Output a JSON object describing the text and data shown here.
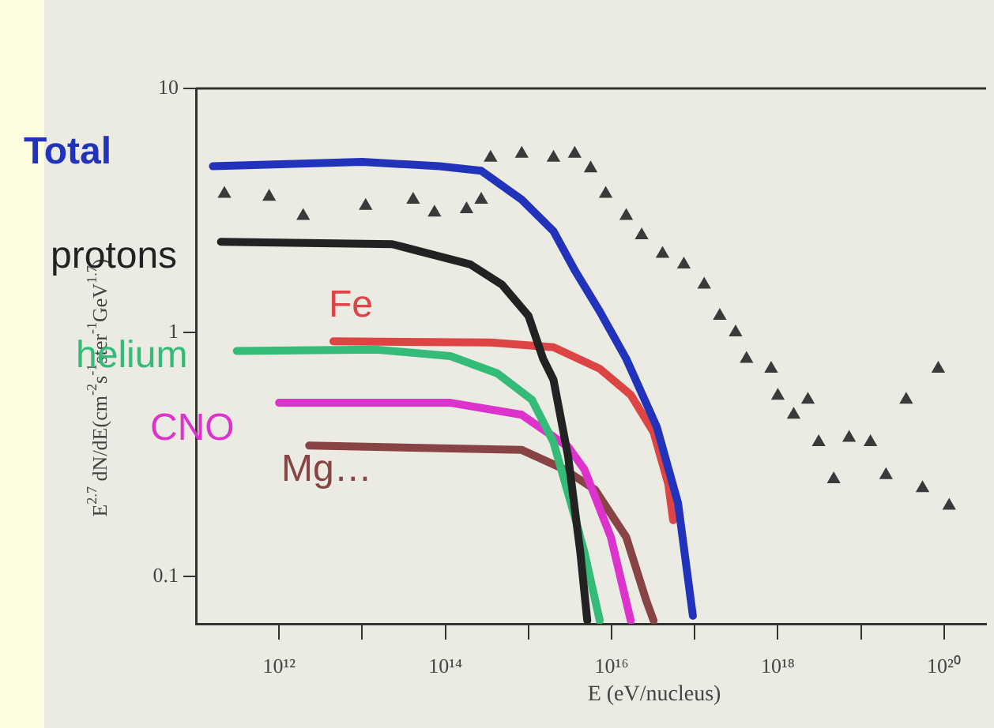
{
  "chart_data": {
    "type": "line",
    "xlabel": "E (eV/nucleus)",
    "ylabel": "E$^{2.7}$ dN/dE(cm$^{-2}$s$^{-1}$ster$^{-1}$GeV$^{1.7}$)",
    "log": "xy",
    "grid": false,
    "legend": false,
    "line_style": "solid",
    "marker": "none",
    "xlim": [
      100000000000.0,
      3.2e+20
    ],
    "ylim": [
      0.064,
      10
    ],
    "xticks": [
      {
        "value": 1000000000000.0,
        "label": "10¹²"
      },
      {
        "value": 10000000000000.0,
        "label": null
      },
      {
        "value": 100000000000000.0,
        "label": "10¹⁴"
      },
      {
        "value": 1000000000000000.0,
        "label": null
      },
      {
        "value": 1e+16,
        "label": "10¹⁶"
      },
      {
        "value": 1e+17,
        "label": null
      },
      {
        "value": 1e+18,
        "label": "10¹⁸"
      },
      {
        "value": 1e+19,
        "label": null
      },
      {
        "value": 1e+20,
        "label": "10²⁰"
      }
    ],
    "yticks": [
      0.1,
      1,
      10
    ],
    "series": [
      {
        "type": "scatter",
        "marker": "triangle",
        "color": "#3a3a3a",
        "x": [
          220000000000.0,
          760000000000.0,
          1950000000000.0,
          11000000000000.0,
          41000000000000.0,
          74000000000000.0,
          180000000000000.0,
          270000000000000.0,
          350000000000000.0,
          830000000000000.0,
          2000000000000000.0,
          3600000000000000.0,
          5600000000000000.0,
          8500000000000000.0,
          1.5e+16,
          2.3e+16,
          4.1e+16,
          7.4e+16,
          1.3e+17,
          2e+17,
          3.1e+17,
          4.2e+17,
          8.3e+17,
          1e+18,
          1.55e+18,
          2.3e+18,
          3.1e+18,
          4.7e+18,
          7.2e+18,
          1.3e+19,
          2e+19,
          3.5e+19,
          5.5e+19,
          8.5e+19,
          1.15e+20
        ],
        "values": [
          3.7,
          3.6,
          3.0,
          3.3,
          3.5,
          3.1,
          3.2,
          3.5,
          5.2,
          5.4,
          5.2,
          5.4,
          4.7,
          3.7,
          3.0,
          2.5,
          2.1,
          1.9,
          1.57,
          1.17,
          1.0,
          0.78,
          0.71,
          0.55,
          0.46,
          0.53,
          0.355,
          0.25,
          0.37,
          0.355,
          0.26,
          0.53,
          0.23,
          0.71,
          0.195
        ]
      },
      {
        "name": "Total",
        "color": "#2233bb",
        "x": [
          160000000000.0,
          10000000000000.0,
          85000000000000.0,
          270000000000000.0,
          830000000000000.0,
          2000000000000000.0,
          3600000000000000.0,
          7200000000000000.0,
          1.5e+16,
          3.5e+16,
          6.3e+16,
          9.5e+16
        ],
        "values": [
          4.8,
          5.0,
          4.8,
          4.6,
          3.5,
          2.6,
          1.8,
          1.22,
          0.78,
          0.41,
          0.2,
          0.069
        ]
      },
      {
        "name": "protons",
        "color": "#222222",
        "x": [
          200000000000.0,
          23000000000000.0,
          200000000000000.0,
          480000000000000.0,
          1000000000000000.0,
          1500000000000000.0,
          2000000000000000.0,
          3000000000000000.0,
          4200000000000000.0,
          5100000000000000.0
        ],
        "values": [
          2.35,
          2.3,
          1.9,
          1.57,
          1.17,
          0.78,
          0.64,
          0.31,
          0.126,
          0.066
        ]
      },
      {
        "name": "Fe",
        "color": "#dd4444",
        "x": [
          4500000000000.0,
          350000000000000.0,
          2000000000000000.0,
          7200000000000000.0,
          1.7e+16,
          3.2e+16,
          4.8e+16,
          5.5e+16
        ],
        "values": [
          0.92,
          0.91,
          0.87,
          0.71,
          0.555,
          0.39,
          0.24,
          0.17
        ]
      },
      {
        "name": "helium",
        "color": "#33bb77",
        "x": [
          310000000000.0,
          15000000000000.0,
          115000000000000.0,
          420000000000000.0,
          1100000000000000.0,
          2000000000000000.0,
          3600000000000000.0,
          4700000000000000.0,
          7200000000000000.0
        ],
        "values": [
          0.84,
          0.85,
          0.8,
          0.68,
          0.53,
          0.355,
          0.176,
          0.126,
          0.066
        ]
      },
      {
        "name": "CNO",
        "color": "#dd33cc",
        "x": [
          1000000000000.0,
          115000000000000.0,
          830000000000000.0,
          3000000000000000.0,
          4700000000000000.0,
          9800000000000000.0,
          1.7e+16
        ],
        "values": [
          0.515,
          0.515,
          0.46,
          0.34,
          0.275,
          0.145,
          0.066
        ]
      },
      {
        "name": "Mg…",
        "color": "#884444",
        "x": [
          2300000000000.0,
          830000000000000.0,
          2700000000000000.0,
          6300000000000000.0,
          1.5e+16,
          2.6e+16,
          3.2e+16
        ],
        "values": [
          0.344,
          0.33,
          0.275,
          0.227,
          0.145,
          0.08,
          0.066
        ]
      }
    ]
  }
}
